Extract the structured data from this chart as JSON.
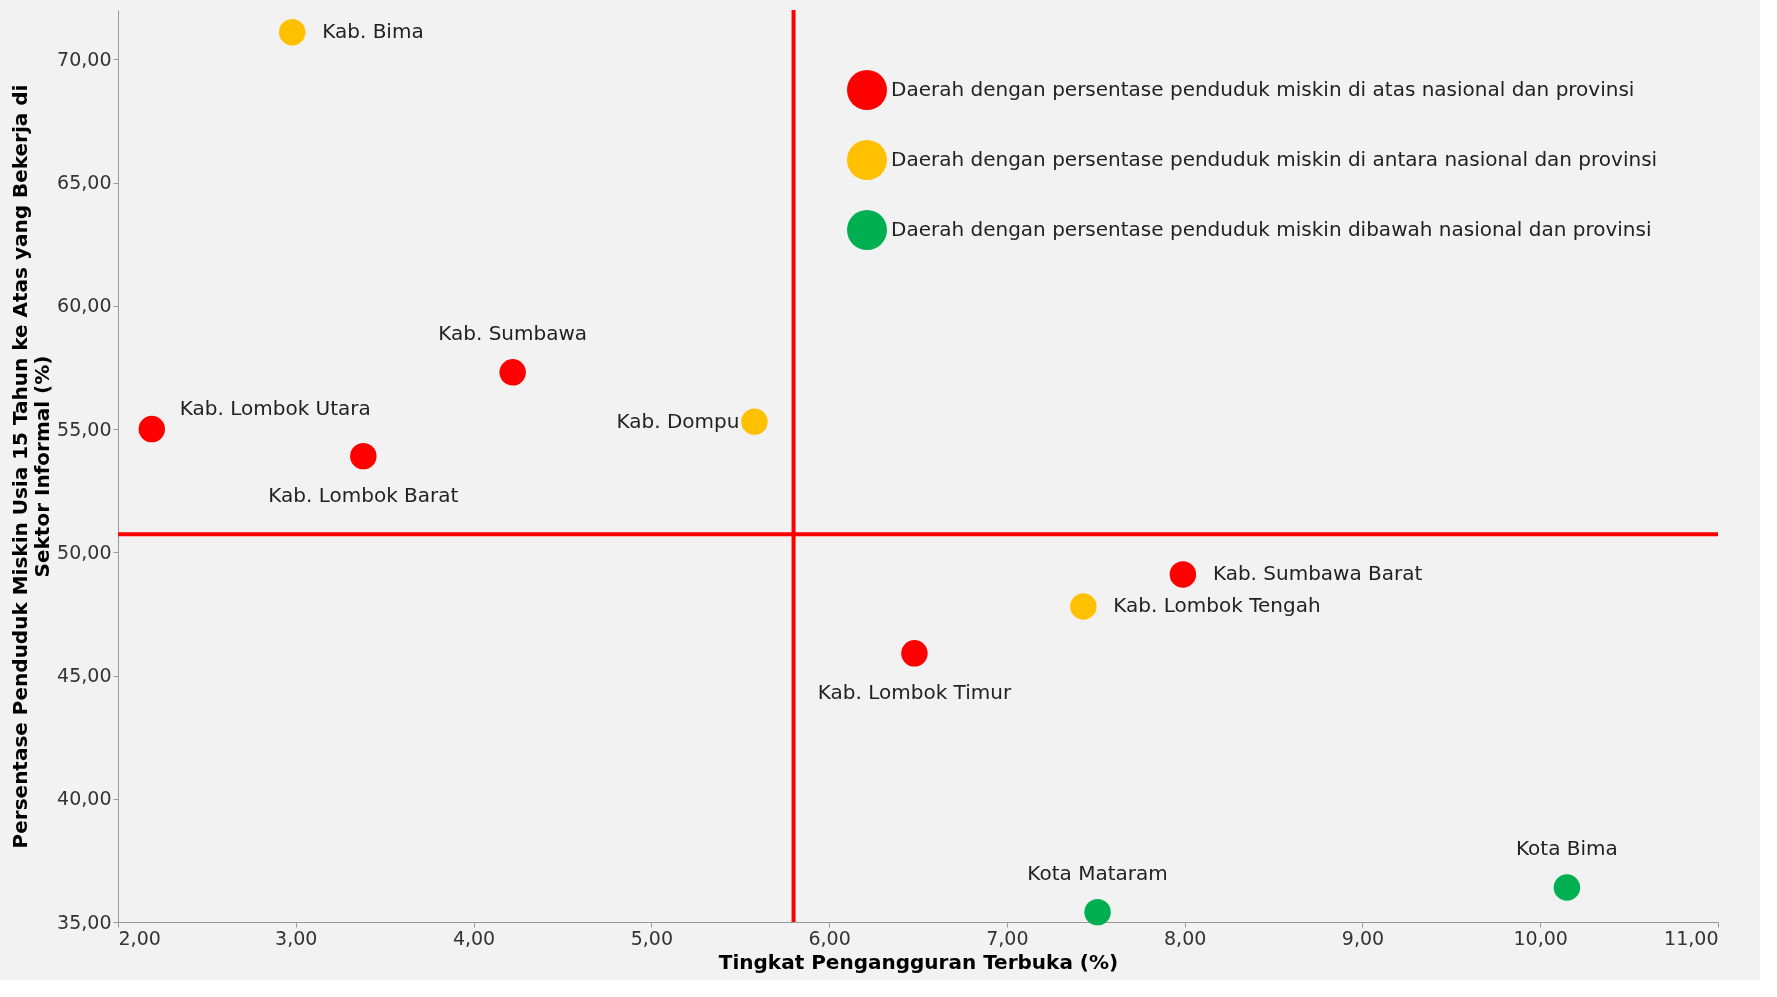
{
  "chart_data": {
    "type": "scatter",
    "xlabel": "Tingkat Pengangguran Terbuka (%)",
    "ylabel": "Persentase Penduduk Miskin Usia 15 Tahun ke Atas yang Bekerja di Sektor Informal (%)",
    "xlim": [
      2,
      11
    ],
    "ylim": [
      35,
      72
    ],
    "xticks": [
      {
        "value": 2,
        "label": "2,00"
      },
      {
        "value": 3,
        "label": "3,00"
      },
      {
        "value": 4,
        "label": "4,00"
      },
      {
        "value": 5,
        "label": "5,00"
      },
      {
        "value": 6,
        "label": "6,00"
      },
      {
        "value": 7,
        "label": "7,00"
      },
      {
        "value": 8,
        "label": "8,00"
      },
      {
        "value": 9,
        "label": "9,00"
      },
      {
        "value": 10,
        "label": "10,00"
      },
      {
        "value": 11,
        "label": "11,00"
      }
    ],
    "yticks": [
      {
        "value": 35,
        "label": "35,00"
      },
      {
        "value": 40,
        "label": "40,00"
      },
      {
        "value": 45,
        "label": "45,00"
      },
      {
        "value": 50,
        "label": "50,00"
      },
      {
        "value": 55,
        "label": "55,00"
      },
      {
        "value": 60,
        "label": "60,00"
      },
      {
        "value": 65,
        "label": "65,00"
      },
      {
        "value": 70,
        "label": "70,00"
      }
    ],
    "series": [
      {
        "name": "Daerah dengan persentase penduduk miskin di atas nasional dan provinsi",
        "color": "#ff0000",
        "x": [
          2.19,
          4.22,
          3.38,
          7.99,
          6.48
        ],
        "values": [
          55.0,
          57.3,
          53.9,
          49.1,
          45.9
        ]
      },
      {
        "name": "Daerah dengan persentase penduduk miskin di antara nasional dan provinsi",
        "color": "#ffc000",
        "x": [
          2.98,
          5.58,
          7.43
        ],
        "values": [
          71.1,
          55.3,
          47.8
        ]
      },
      {
        "name": "Daerah dengan persentase penduduk miskin dibawah nasional dan provinsi",
        "color": "#00b050",
        "x": [
          7.51,
          10.15
        ],
        "values": [
          35.4,
          36.4
        ]
      }
    ],
    "annotations": [
      {
        "text": "Kab. Lombok Utara",
        "x": 2.19,
        "y": 55.0
      },
      {
        "text": "Kab. Sumbawa",
        "x": 4.22,
        "y": 57.3
      },
      {
        "text": "Kab. Lombok Barat",
        "x": 3.38,
        "y": 53.9
      },
      {
        "text": "Kab. Sumbawa Barat",
        "x": 7.99,
        "y": 49.1
      },
      {
        "text": "Kab. Lombok Timur",
        "x": 6.48,
        "y": 45.9
      },
      {
        "text": "Kab. Bima",
        "x": 2.98,
        "y": 71.1
      },
      {
        "text": "Kab. Dompu",
        "x": 5.58,
        "y": 55.3
      },
      {
        "text": "Kab. Lombok Tengah",
        "x": 7.43,
        "y": 47.8
      },
      {
        "text": "Kota Mataram",
        "x": 7.51,
        "y": 35.4
      },
      {
        "text": "Kota Bima",
        "x": 10.15,
        "y": 36.4
      }
    ],
    "ref_lines": [
      {
        "axis": "x",
        "value": 5.8,
        "color": "#ff0000"
      },
      {
        "axis": "y",
        "value": 50.73,
        "color": "#ff0000"
      }
    ],
    "legend": "top right",
    "grid": false
  }
}
